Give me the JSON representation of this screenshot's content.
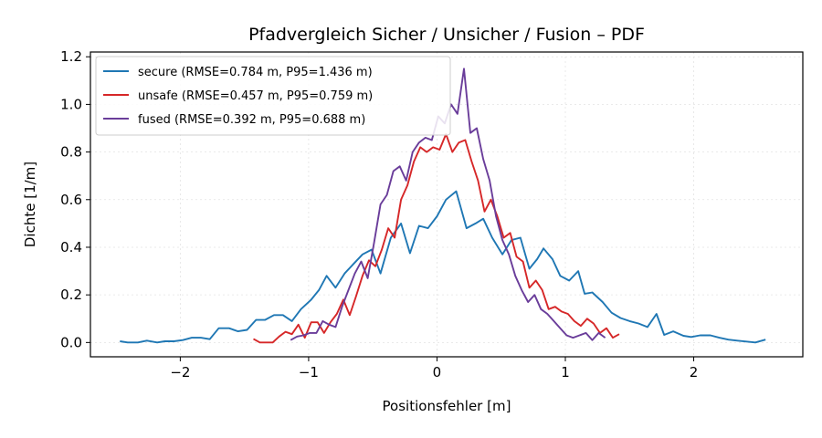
{
  "chart_data": {
    "type": "line",
    "title": "Pfadvergleich Sicher / Unsicher / Fusion – PDF",
    "xlabel": "Positionsfehler [m]",
    "ylabel": "Dichte [1/m]",
    "xlim": [
      -2.7,
      2.85
    ],
    "ylim": [
      -0.06,
      1.22
    ],
    "xticks": [
      -2,
      -1,
      0,
      1,
      2
    ],
    "xtick_labels": [
      "−2",
      "−1",
      "0",
      "1",
      "2"
    ],
    "yticks": [
      0.0,
      0.2,
      0.4,
      0.6,
      0.8,
      1.0,
      1.2
    ],
    "ytick_labels": [
      "0.0",
      "0.2",
      "0.4",
      "0.6",
      "0.8",
      "1.0",
      "1.2"
    ],
    "grid": true,
    "legend_position": "top-left",
    "series": [
      {
        "name": "secure (RMSE=0.784 m, P95=1.436 m)",
        "color": "#1f77b4",
        "points": [
          [
            -2.47,
            0.005
          ],
          [
            -2.41,
            0.0
          ],
          [
            -2.33,
            0.0
          ],
          [
            -2.26,
            0.008
          ],
          [
            -2.18,
            0.0
          ],
          [
            -2.12,
            0.005
          ],
          [
            -2.05,
            0.005
          ],
          [
            -1.98,
            0.01
          ],
          [
            -1.91,
            0.02
          ],
          [
            -1.84,
            0.02
          ],
          [
            -1.77,
            0.014
          ],
          [
            -1.7,
            0.06
          ],
          [
            -1.62,
            0.06
          ],
          [
            -1.55,
            0.047
          ],
          [
            -1.48,
            0.053
          ],
          [
            -1.41,
            0.095
          ],
          [
            -1.34,
            0.095
          ],
          [
            -1.27,
            0.115
          ],
          [
            -1.2,
            0.115
          ],
          [
            -1.13,
            0.09
          ],
          [
            -1.06,
            0.14
          ],
          [
            -0.98,
            0.18
          ],
          [
            -0.92,
            0.22
          ],
          [
            -0.86,
            0.28
          ],
          [
            -0.79,
            0.23
          ],
          [
            -0.72,
            0.29
          ],
          [
            -0.65,
            0.33
          ],
          [
            -0.58,
            0.37
          ],
          [
            -0.51,
            0.39
          ],
          [
            -0.44,
            0.29
          ],
          [
            -0.36,
            0.44
          ],
          [
            -0.28,
            0.5
          ],
          [
            -0.21,
            0.375
          ],
          [
            -0.14,
            0.49
          ],
          [
            -0.07,
            0.48
          ],
          [
            0.0,
            0.53
          ],
          [
            0.07,
            0.6
          ],
          [
            0.15,
            0.635
          ],
          [
            0.23,
            0.48
          ],
          [
            0.3,
            0.5
          ],
          [
            0.36,
            0.52
          ],
          [
            0.43,
            0.44
          ],
          [
            0.51,
            0.37
          ],
          [
            0.58,
            0.43
          ],
          [
            0.65,
            0.44
          ],
          [
            0.72,
            0.31
          ],
          [
            0.78,
            0.35
          ],
          [
            0.83,
            0.395
          ],
          [
            0.9,
            0.35
          ],
          [
            0.96,
            0.28
          ],
          [
            1.03,
            0.26
          ],
          [
            1.1,
            0.3
          ],
          [
            1.15,
            0.205
          ],
          [
            1.21,
            0.21
          ],
          [
            1.29,
            0.17
          ],
          [
            1.36,
            0.125
          ],
          [
            1.43,
            0.103
          ],
          [
            1.5,
            0.09
          ],
          [
            1.57,
            0.08
          ],
          [
            1.64,
            0.065
          ],
          [
            1.71,
            0.12
          ],
          [
            1.77,
            0.032
          ],
          [
            1.84,
            0.047
          ],
          [
            1.92,
            0.028
          ],
          [
            1.98,
            0.023
          ],
          [
            2.05,
            0.03
          ],
          [
            2.13,
            0.03
          ],
          [
            2.2,
            0.02
          ],
          [
            2.27,
            0.012
          ],
          [
            2.34,
            0.008
          ],
          [
            2.41,
            0.004
          ],
          [
            2.48,
            0.0
          ],
          [
            2.56,
            0.012
          ]
        ]
      },
      {
        "name": "unsafe (RMSE=0.457 m, P95=0.759 m)",
        "color": "#d62728",
        "points": [
          [
            -1.43,
            0.015
          ],
          [
            -1.38,
            0.0
          ],
          [
            -1.33,
            0.0
          ],
          [
            -1.28,
            0.0
          ],
          [
            -1.23,
            0.025
          ],
          [
            -1.18,
            0.045
          ],
          [
            -1.13,
            0.035
          ],
          [
            -1.08,
            0.075
          ],
          [
            -1.03,
            0.02
          ],
          [
            -0.98,
            0.085
          ],
          [
            -0.93,
            0.085
          ],
          [
            -0.88,
            0.04
          ],
          [
            -0.83,
            0.085
          ],
          [
            -0.78,
            0.12
          ],
          [
            -0.73,
            0.18
          ],
          [
            -0.68,
            0.115
          ],
          [
            -0.63,
            0.195
          ],
          [
            -0.58,
            0.28
          ],
          [
            -0.53,
            0.345
          ],
          [
            -0.48,
            0.32
          ],
          [
            -0.43,
            0.39
          ],
          [
            -0.38,
            0.48
          ],
          [
            -0.33,
            0.44
          ],
          [
            -0.28,
            0.6
          ],
          [
            -0.23,
            0.66
          ],
          [
            -0.18,
            0.76
          ],
          [
            -0.13,
            0.82
          ],
          [
            -0.08,
            0.8
          ],
          [
            -0.03,
            0.82
          ],
          [
            0.02,
            0.81
          ],
          [
            0.07,
            0.875
          ],
          [
            0.12,
            0.8
          ],
          [
            0.17,
            0.84
          ],
          [
            0.22,
            0.85
          ],
          [
            0.27,
            0.76
          ],
          [
            0.32,
            0.68
          ],
          [
            0.37,
            0.55
          ],
          [
            0.42,
            0.6
          ],
          [
            0.47,
            0.53
          ],
          [
            0.52,
            0.44
          ],
          [
            0.57,
            0.46
          ],
          [
            0.62,
            0.36
          ],
          [
            0.67,
            0.34
          ],
          [
            0.72,
            0.23
          ],
          [
            0.77,
            0.26
          ],
          [
            0.82,
            0.22
          ],
          [
            0.87,
            0.14
          ],
          [
            0.92,
            0.15
          ],
          [
            0.97,
            0.13
          ],
          [
            1.02,
            0.12
          ],
          [
            1.07,
            0.09
          ],
          [
            1.12,
            0.07
          ],
          [
            1.17,
            0.1
          ],
          [
            1.22,
            0.08
          ],
          [
            1.27,
            0.04
          ],
          [
            1.32,
            0.06
          ],
          [
            1.37,
            0.02
          ],
          [
            1.42,
            0.035
          ]
        ]
      },
      {
        "name": "fused (RMSE=0.392 m, P95=0.688 m)",
        "color": "#6a3d9a",
        "points": [
          [
            -1.14,
            0.01
          ],
          [
            -1.09,
            0.025
          ],
          [
            -1.04,
            0.03
          ],
          [
            -0.99,
            0.04
          ],
          [
            -0.94,
            0.04
          ],
          [
            -0.89,
            0.09
          ],
          [
            -0.84,
            0.075
          ],
          [
            -0.79,
            0.065
          ],
          [
            -0.74,
            0.15
          ],
          [
            -0.69,
            0.22
          ],
          [
            -0.64,
            0.29
          ],
          [
            -0.59,
            0.34
          ],
          [
            -0.54,
            0.27
          ],
          [
            -0.49,
            0.42
          ],
          [
            -0.44,
            0.58
          ],
          [
            -0.39,
            0.62
          ],
          [
            -0.34,
            0.72
          ],
          [
            -0.29,
            0.74
          ],
          [
            -0.24,
            0.68
          ],
          [
            -0.19,
            0.8
          ],
          [
            -0.14,
            0.84
          ],
          [
            -0.09,
            0.86
          ],
          [
            -0.04,
            0.85
          ],
          [
            0.01,
            0.95
          ],
          [
            0.06,
            0.92
          ],
          [
            0.11,
            1.0
          ],
          [
            0.16,
            0.96
          ],
          [
            0.21,
            1.15
          ],
          [
            0.26,
            0.88
          ],
          [
            0.31,
            0.9
          ],
          [
            0.36,
            0.77
          ],
          [
            0.41,
            0.68
          ],
          [
            0.46,
            0.53
          ],
          [
            0.51,
            0.43
          ],
          [
            0.56,
            0.37
          ],
          [
            0.61,
            0.28
          ],
          [
            0.66,
            0.22
          ],
          [
            0.71,
            0.17
          ],
          [
            0.76,
            0.2
          ],
          [
            0.81,
            0.14
          ],
          [
            0.86,
            0.12
          ],
          [
            0.91,
            0.09
          ],
          [
            0.96,
            0.06
          ],
          [
            1.01,
            0.03
          ],
          [
            1.06,
            0.02
          ],
          [
            1.11,
            0.03
          ],
          [
            1.16,
            0.04
          ],
          [
            1.21,
            0.01
          ],
          [
            1.26,
            0.04
          ],
          [
            1.31,
            0.02
          ]
        ]
      }
    ]
  }
}
